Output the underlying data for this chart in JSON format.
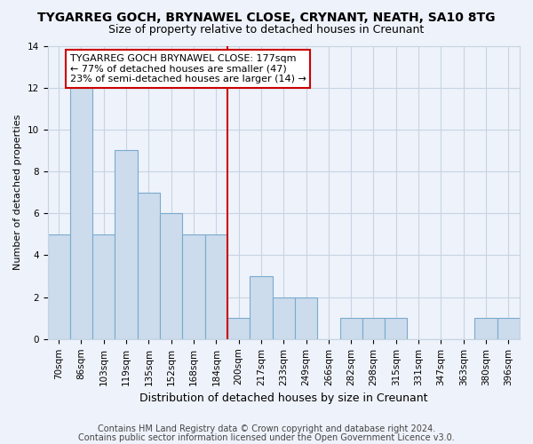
{
  "title": "TYGARREG GOCH, BRYNAWEL CLOSE, CRYNANT, NEATH, SA10 8TG",
  "subtitle": "Size of property relative to detached houses in Creunant",
  "xlabel": "Distribution of detached houses by size in Creunant",
  "ylabel": "Number of detached properties",
  "footer1": "Contains HM Land Registry data © Crown copyright and database right 2024.",
  "footer2": "Contains public sector information licensed under the Open Government Licence v3.0.",
  "categories": [
    "70sqm",
    "86sqm",
    "103sqm",
    "119sqm",
    "135sqm",
    "152sqm",
    "168sqm",
    "184sqm",
    "200sqm",
    "217sqm",
    "233sqm",
    "249sqm",
    "266sqm",
    "282sqm",
    "298sqm",
    "315sqm",
    "331sqm",
    "347sqm",
    "363sqm",
    "380sqm",
    "396sqm"
  ],
  "values": [
    5,
    12,
    5,
    9,
    7,
    6,
    5,
    5,
    1,
    3,
    2,
    2,
    0,
    1,
    1,
    1,
    0,
    0,
    0,
    1,
    1
  ],
  "bar_color": "#ccdcec",
  "bar_edge_color": "#7aaace",
  "grid_color": "#c8d4e4",
  "background_color": "#eef2fa",
  "vline_index": 7,
  "vline_color": "#cc0000",
  "annotation_line1": "TYGARREG GOCH BRYNAWEL CLOSE: 177sqm",
  "annotation_line2": "← 77% of detached houses are smaller (47)",
  "annotation_line3": "23% of semi-detached houses are larger (14) →",
  "annotation_box_color": "#ffffff",
  "annotation_box_edge": "#cc0000",
  "ylim": [
    0,
    14
  ],
  "yticks": [
    0,
    2,
    4,
    6,
    8,
    10,
    12,
    14
  ],
  "title_fontsize": 10,
  "subtitle_fontsize": 9,
  "ylabel_fontsize": 8,
  "xlabel_fontsize": 9,
  "tick_fontsize": 7.5,
  "annotation_fontsize": 8,
  "footer_fontsize": 7
}
